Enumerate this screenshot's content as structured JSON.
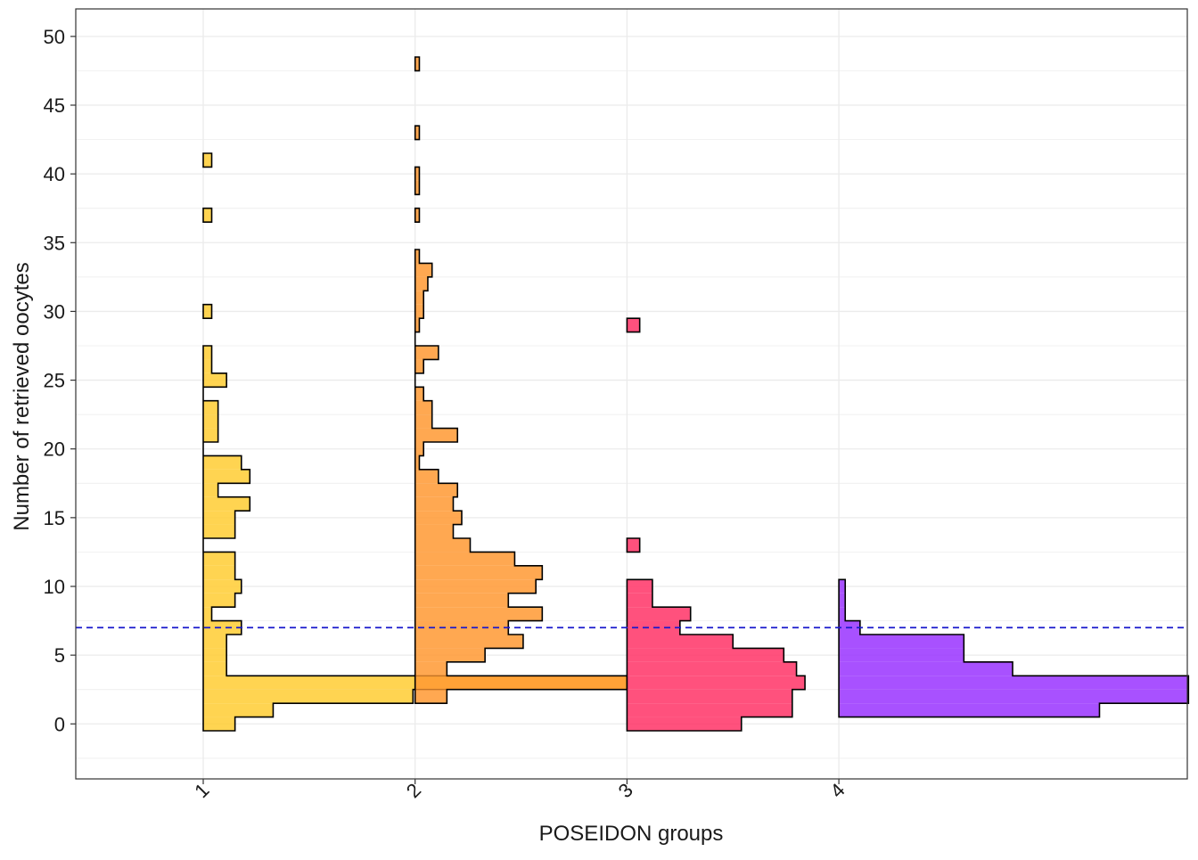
{
  "chart_data": {
    "type": "histogram",
    "orientation": "horizontal",
    "xlabel": "POSEIDON groups",
    "ylabel": "Number of retrieved oocytes",
    "categories": [
      "1",
      "2",
      "3",
      "4"
    ],
    "ylim": [
      -4,
      52
    ],
    "yticks": [
      0,
      5,
      10,
      15,
      20,
      25,
      30,
      35,
      40,
      45,
      50
    ],
    "bin_width": 1,
    "reference_line": {
      "y": 7,
      "style": "dashed",
      "color": "#1a1acc"
    },
    "grid": true,
    "legend": "none",
    "series": [
      {
        "group": "1",
        "color": "#ffcc33",
        "bins": [
          {
            "y": 0,
            "width": 0.15
          },
          {
            "y": 1,
            "width": 0.33
          },
          {
            "y": 2,
            "width": 0.99
          },
          {
            "y": 3,
            "width": 2.0
          },
          {
            "y": 4,
            "width": 0.11
          },
          {
            "y": 5,
            "width": 0.11
          },
          {
            "y": 6,
            "width": 0.11
          },
          {
            "y": 7,
            "width": 0.18
          },
          {
            "y": 8,
            "width": 0.04
          },
          {
            "y": 9,
            "width": 0.15
          },
          {
            "y": 10,
            "width": 0.18
          },
          {
            "y": 11,
            "width": 0.15
          },
          {
            "y": 12,
            "width": 0.15
          },
          {
            "y": 13,
            "width": 0.0
          },
          {
            "y": 14,
            "width": 0.15
          },
          {
            "y": 15,
            "width": 0.15
          },
          {
            "y": 16,
            "width": 0.22
          },
          {
            "y": 17,
            "width": 0.07
          },
          {
            "y": 18,
            "width": 0.22
          },
          {
            "y": 19,
            "width": 0.18
          },
          {
            "y": 20,
            "width": 0.0
          },
          {
            "y": 21,
            "width": 0.07
          },
          {
            "y": 22,
            "width": 0.07
          },
          {
            "y": 23,
            "width": 0.07
          },
          {
            "y": 24,
            "width": 0.0
          },
          {
            "y": 25,
            "width": 0.11
          },
          {
            "y": 26,
            "width": 0.04
          },
          {
            "y": 27,
            "width": 0.04
          },
          {
            "y": 30,
            "width": 0.04
          },
          {
            "y": 37,
            "width": 0.04
          },
          {
            "y": 41,
            "width": 0.04
          }
        ]
      },
      {
        "group": "2",
        "color": "#ff9933",
        "bins": [
          {
            "y": 2,
            "width": 0.15
          },
          {
            "y": 3,
            "width": 1.0
          },
          {
            "y": 4,
            "width": 0.15
          },
          {
            "y": 5,
            "width": 0.33
          },
          {
            "y": 6,
            "width": 0.51
          },
          {
            "y": 7,
            "width": 0.44
          },
          {
            "y": 8,
            "width": 0.6
          },
          {
            "y": 9,
            "width": 0.44
          },
          {
            "y": 10,
            "width": 0.57
          },
          {
            "y": 11,
            "width": 0.6
          },
          {
            "y": 12,
            "width": 0.47
          },
          {
            "y": 13,
            "width": 0.26
          },
          {
            "y": 14,
            "width": 0.18
          },
          {
            "y": 15,
            "width": 0.22
          },
          {
            "y": 16,
            "width": 0.18
          },
          {
            "y": 17,
            "width": 0.2
          },
          {
            "y": 18,
            "width": 0.11
          },
          {
            "y": 19,
            "width": 0.02
          },
          {
            "y": 20,
            "width": 0.04
          },
          {
            "y": 21,
            "width": 0.2
          },
          {
            "y": 22,
            "width": 0.08
          },
          {
            "y": 23,
            "width": 0.08
          },
          {
            "y": 24,
            "width": 0.04
          },
          {
            "y": 25,
            "width": 0.0
          },
          {
            "y": 26,
            "width": 0.04
          },
          {
            "y": 27,
            "width": 0.11
          },
          {
            "y": 28,
            "width": 0.0
          },
          {
            "y": 29,
            "width": 0.02
          },
          {
            "y": 30,
            "width": 0.04
          },
          {
            "y": 31,
            "width": 0.04
          },
          {
            "y": 32,
            "width": 0.06
          },
          {
            "y": 33,
            "width": 0.08
          },
          {
            "y": 34,
            "width": 0.02
          },
          {
            "y": 37,
            "width": 0.02
          },
          {
            "y": 39,
            "width": 0.02
          },
          {
            "y": 40,
            "width": 0.02
          },
          {
            "y": 43,
            "width": 0.02
          },
          {
            "y": 48,
            "width": 0.02
          }
        ]
      },
      {
        "group": "3",
        "color": "#ff3366",
        "bins": [
          {
            "y": 0,
            "width": 0.54
          },
          {
            "y": 1,
            "width": 0.78
          },
          {
            "y": 2,
            "width": 0.78
          },
          {
            "y": 3,
            "width": 0.84
          },
          {
            "y": 4,
            "width": 0.8
          },
          {
            "y": 5,
            "width": 0.74
          },
          {
            "y": 6,
            "width": 0.5
          },
          {
            "y": 7,
            "width": 0.25
          },
          {
            "y": 8,
            "width": 0.3
          },
          {
            "y": 9,
            "width": 0.12
          },
          {
            "y": 10,
            "width": 0.12
          },
          {
            "y": 13,
            "width": 0.06
          },
          {
            "y": 29,
            "width": 0.06
          }
        ]
      },
      {
        "group": "4",
        "color": "#9933ff",
        "bins": [
          {
            "y": 1,
            "width": 1.23
          },
          {
            "y": 2,
            "width": 1.65
          },
          {
            "y": 3,
            "width": 1.65
          },
          {
            "y": 4,
            "width": 0.82
          },
          {
            "y": 5,
            "width": 0.59
          },
          {
            "y": 6,
            "width": 0.59
          },
          {
            "y": 7,
            "width": 0.1
          },
          {
            "y": 8,
            "width": 0.03
          },
          {
            "y": 9,
            "width": 0.03
          },
          {
            "y": 10,
            "width": 0.03
          }
        ]
      }
    ]
  }
}
